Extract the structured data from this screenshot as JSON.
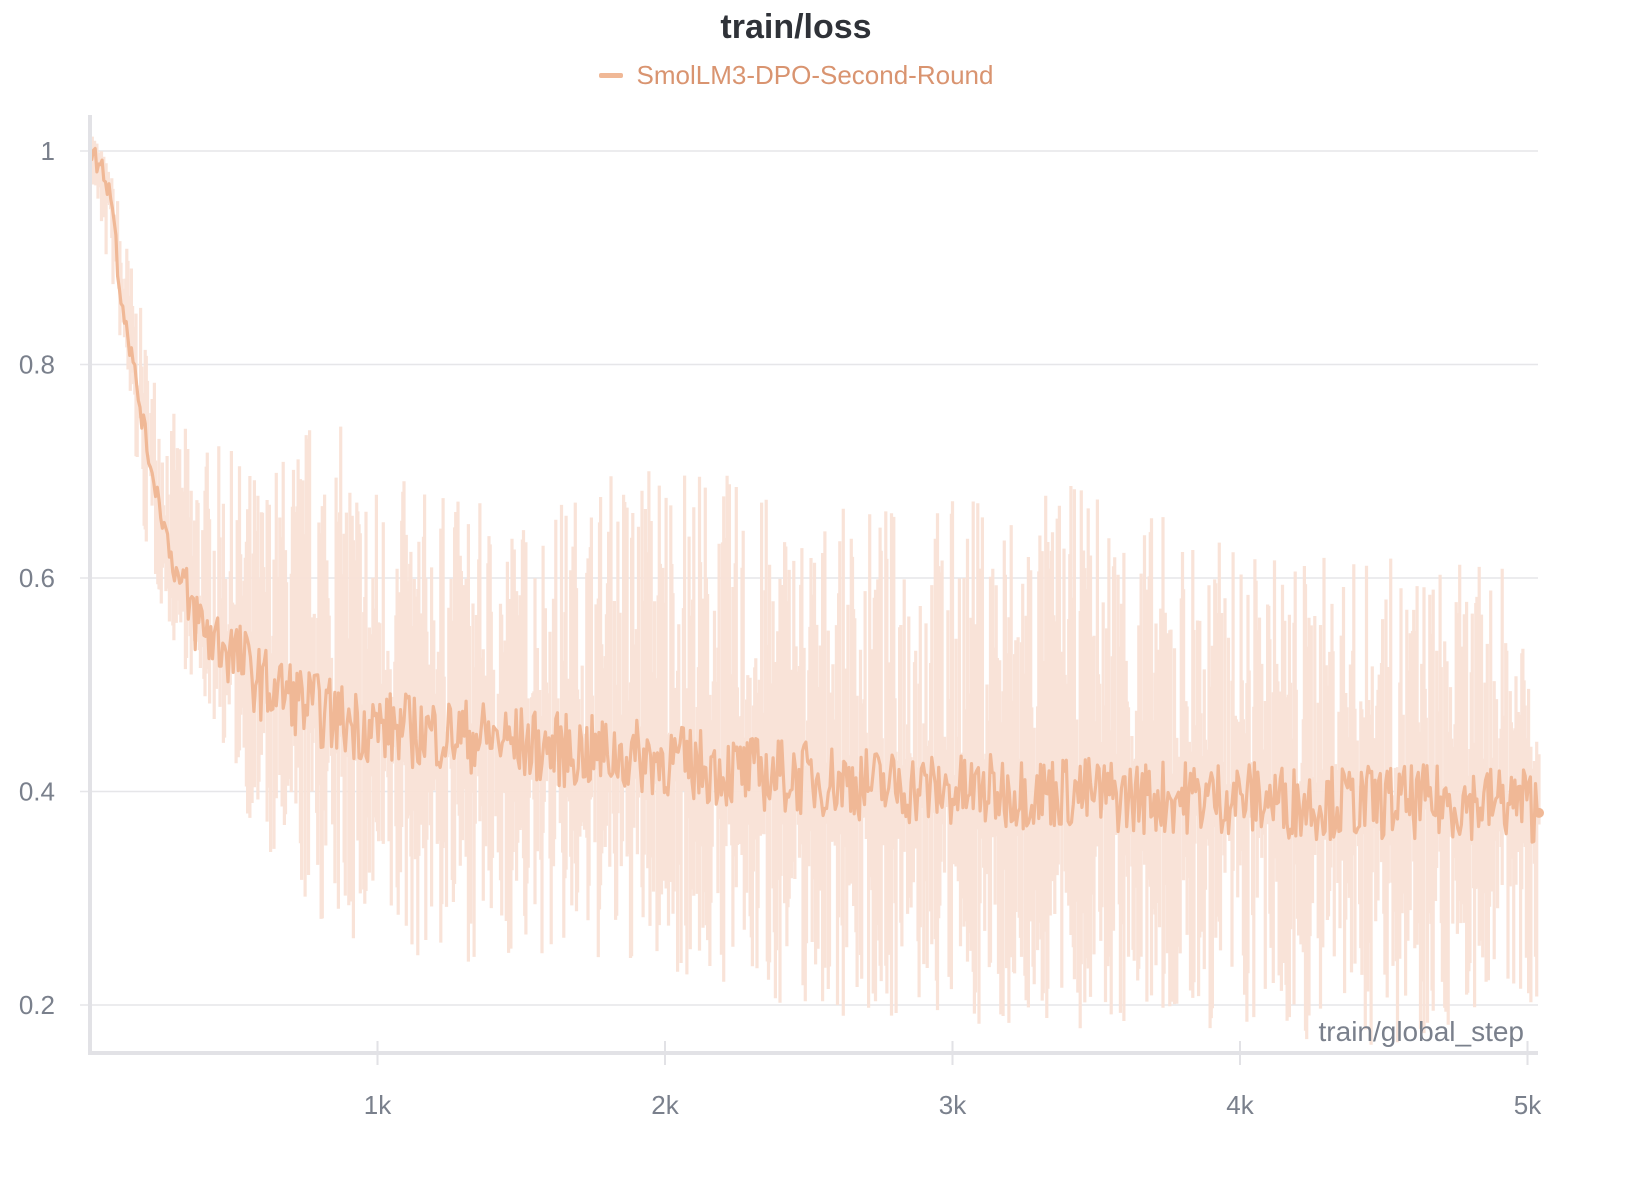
{
  "chart": {
    "title": "train/loss",
    "legend": [
      {
        "label": "SmolLM3-DPO-Second-Round",
        "color": "#f0b896"
      }
    ],
    "xlabel": "train/global_step",
    "yticks": [
      {
        "value": 1,
        "label": "1"
      },
      {
        "value": 0.8,
        "label": "0.8"
      },
      {
        "value": 0.6,
        "label": "0.6"
      },
      {
        "value": 0.4,
        "label": "0.4"
      },
      {
        "value": 0.2,
        "label": "0.2"
      }
    ],
    "xticks": [
      {
        "value": 1000,
        "label": "1k"
      },
      {
        "value": 2000,
        "label": "2k"
      },
      {
        "value": 3000,
        "label": "3k"
      },
      {
        "value": 4000,
        "label": "4k"
      },
      {
        "value": 5000,
        "label": "5k"
      }
    ]
  },
  "colors": {
    "line": "#f0b896",
    "band": "#f9e1d6",
    "grid": "#e6e6e9",
    "axis": "#e2e2e6",
    "tick_text": "#7a808c",
    "title": "#2f3238",
    "legend_text": "#d99470"
  },
  "chart_data": {
    "type": "line",
    "title": "train/loss",
    "xlabel": "train/global_step",
    "ylabel": "",
    "xlim": [
      0,
      5040
    ],
    "ylim": [
      0.16,
      1.04
    ],
    "grid": true,
    "legend_position": "top-center",
    "series": [
      {
        "name": "SmolLM3-DPO-Second-Round (smoothed)",
        "x": [
          0,
          50,
          80,
          100,
          150,
          200,
          250,
          300,
          350,
          400,
          500,
          600,
          700,
          800,
          900,
          1000,
          1200,
          1400,
          1600,
          1800,
          2000,
          2200,
          2400,
          2600,
          2800,
          3000,
          3200,
          3400,
          3600,
          3800,
          4000,
          4200,
          4400,
          4600,
          4800,
          5000,
          5040
        ],
        "y": [
          1.0,
          0.98,
          0.95,
          0.88,
          0.8,
          0.72,
          0.66,
          0.6,
          0.57,
          0.55,
          0.53,
          0.5,
          0.49,
          0.475,
          0.465,
          0.46,
          0.455,
          0.45,
          0.44,
          0.435,
          0.43,
          0.42,
          0.415,
          0.41,
          0.405,
          0.4,
          0.4,
          0.4,
          0.395,
          0.395,
          0.395,
          0.39,
          0.39,
          0.39,
          0.39,
          0.39,
          0.38
        ]
      },
      {
        "name": "SmolLM3-DPO-Second-Round (raw range)",
        "x": [
          0,
          100,
          200,
          300,
          400,
          500,
          600,
          800,
          1000,
          1500,
          2000,
          2500,
          3000,
          3500,
          4000,
          4500,
          5000
        ],
        "y_max": [
          1.03,
          0.96,
          0.82,
          0.75,
          0.73,
          0.72,
          0.7,
          0.77,
          0.7,
          0.66,
          0.73,
          0.66,
          0.68,
          0.69,
          0.63,
          0.62,
          0.61
        ],
        "y_min": [
          0.97,
          0.83,
          0.61,
          0.53,
          0.48,
          0.42,
          0.33,
          0.27,
          0.24,
          0.24,
          0.23,
          0.19,
          0.18,
          0.17,
          0.17,
          0.16,
          0.2
        ]
      }
    ]
  }
}
